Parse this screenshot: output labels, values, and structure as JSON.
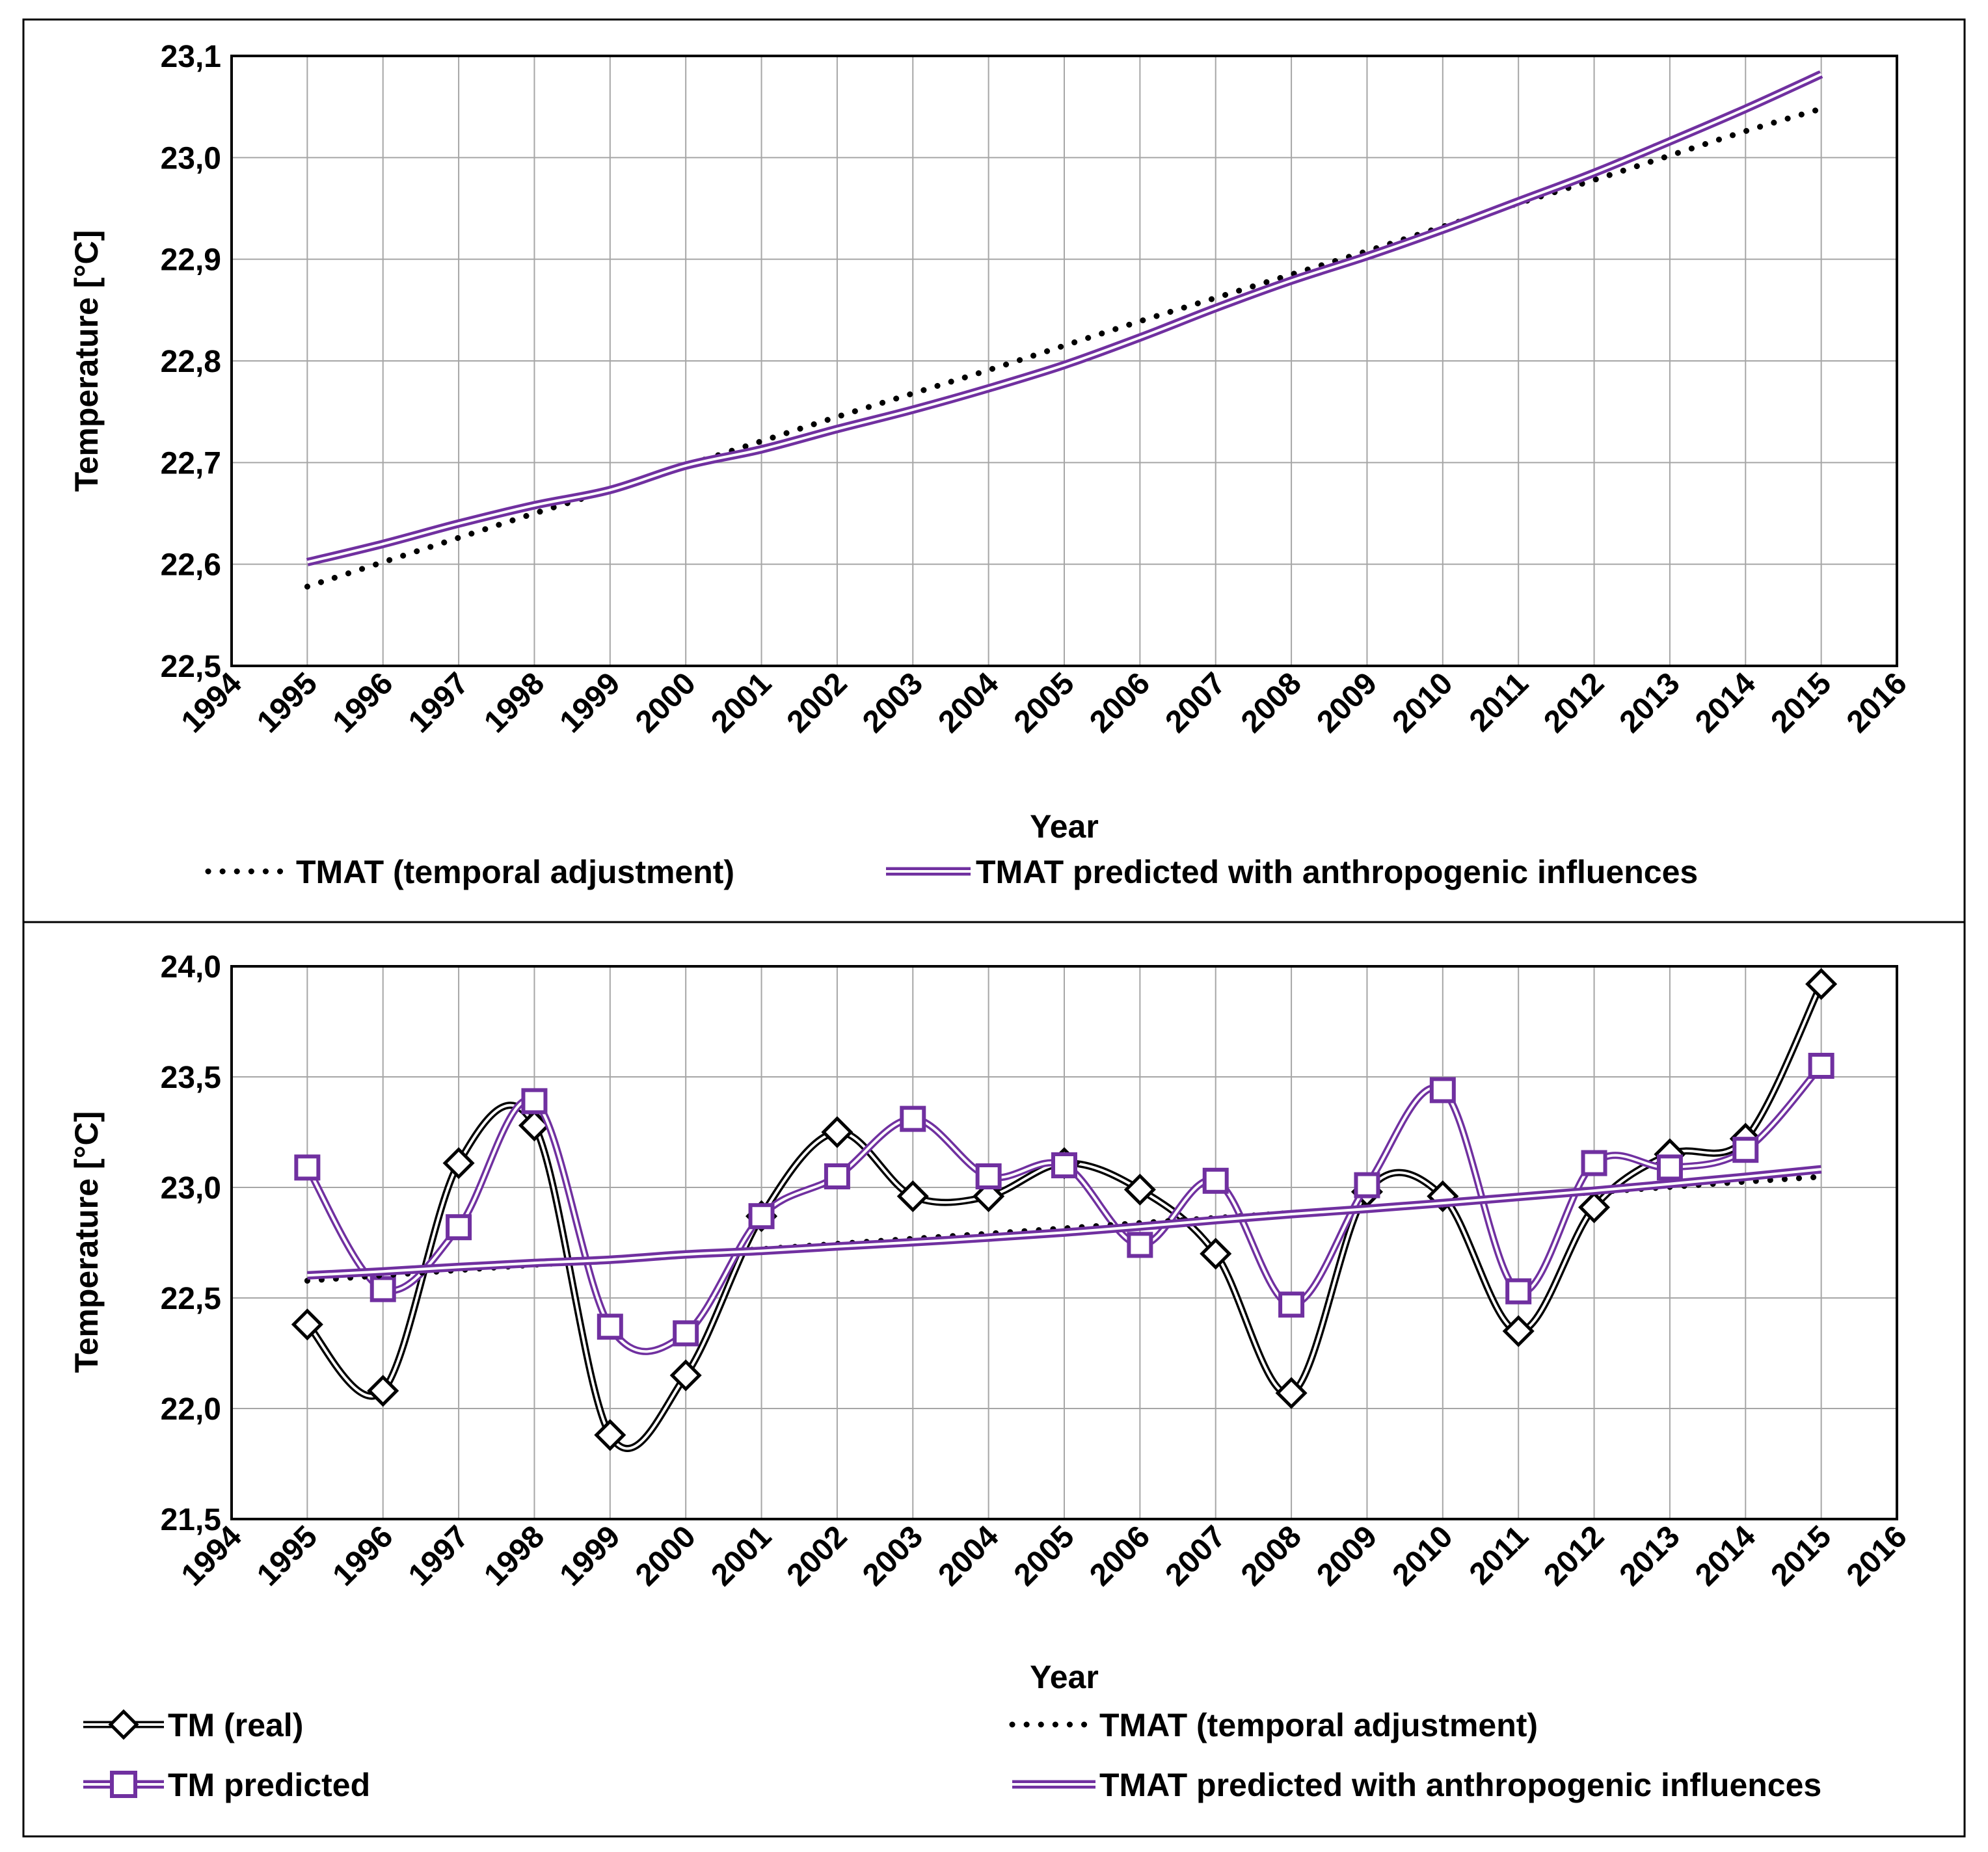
{
  "colors": {
    "purple": "#7030A0",
    "black": "#000000",
    "grid": "#A6A6A6",
    "frame": "#000000"
  },
  "chart_data": [
    {
      "type": "line",
      "xlabel": "Year",
      "ylabel": "Temperature [°C]",
      "xlim": [
        1994,
        2016
      ],
      "ylim": [
        22.5,
        23.1
      ],
      "xticks": [
        "1994",
        "1995",
        "1996",
        "1997",
        "1998",
        "1999",
        "2000",
        "2001",
        "2002",
        "2003",
        "2004",
        "2005",
        "2006",
        "2007",
        "2008",
        "2009",
        "2010",
        "2011",
        "2012",
        "2013",
        "2014",
        "2015",
        "2016"
      ],
      "yticks": [
        "22,5",
        "22,6",
        "22,7",
        "22,8",
        "22,9",
        "23,0",
        "23,1"
      ],
      "grid": true,
      "x": [
        1995,
        1996,
        1997,
        1998,
        1999,
        2000,
        2001,
        2002,
        2003,
        2004,
        2005,
        2006,
        2007,
        2008,
        2009,
        2010,
        2011,
        2012,
        2013,
        2014,
        2015
      ],
      "series": [
        {
          "name": "TMAT (temporal adjustment)",
          "style": "dotted",
          "color": "#000000",
          "values": [
            22.578,
            22.602,
            22.626,
            22.65,
            22.673,
            22.697,
            22.721,
            22.745,
            22.768,
            22.791,
            22.815,
            22.839,
            22.862,
            22.885,
            22.908,
            22.932,
            22.955,
            22.978,
            23.002,
            23.026,
            23.048
          ]
        },
        {
          "name": "TMAT predicted with anthropogenic influences",
          "style": "double",
          "color": "#7030A0",
          "values": [
            22.602,
            22.62,
            22.64,
            22.658,
            22.673,
            22.697,
            22.713,
            22.733,
            22.752,
            22.773,
            22.796,
            22.823,
            22.852,
            22.879,
            22.903,
            22.929,
            22.957,
            22.985,
            23.016,
            23.048,
            23.082
          ]
        }
      ],
      "legend_position": "bottom"
    },
    {
      "type": "line",
      "xlabel": "Year",
      "ylabel": "Temperature [°C]",
      "xlim": [
        1994,
        2016
      ],
      "ylim": [
        21.5,
        24.0
      ],
      "xticks": [
        "1994",
        "1995",
        "1996",
        "1997",
        "1998",
        "1999",
        "2000",
        "2001",
        "2002",
        "2003",
        "2004",
        "2005",
        "2006",
        "2007",
        "2008",
        "2009",
        "2010",
        "2011",
        "2012",
        "2013",
        "2014",
        "2015",
        "2016"
      ],
      "yticks": [
        "21,5",
        "22,0",
        "22,5",
        "23,0",
        "23,5",
        "24,0"
      ],
      "grid": true,
      "x": [
        1995,
        1996,
        1997,
        1998,
        1999,
        2000,
        2001,
        2002,
        2003,
        2004,
        2005,
        2006,
        2007,
        2008,
        2009,
        2010,
        2011,
        2012,
        2013,
        2014,
        2015
      ],
      "series": [
        {
          "name": "TM (real)",
          "style": "double-diamond",
          "color": "#000000",
          "values": [
            22.38,
            22.08,
            23.11,
            23.28,
            21.88,
            22.15,
            22.87,
            23.25,
            22.96,
            22.96,
            23.11,
            22.99,
            22.7,
            22.07,
            22.98,
            22.96,
            22.35,
            22.91,
            23.15,
            23.22,
            23.92
          ]
        },
        {
          "name": "TM predicted",
          "style": "double-square",
          "color": "#7030A0",
          "values": [
            23.09,
            22.54,
            22.82,
            23.39,
            22.37,
            22.34,
            22.87,
            23.05,
            23.31,
            23.05,
            23.1,
            22.74,
            23.03,
            22.47,
            23.01,
            23.44,
            22.53,
            23.11,
            23.09,
            23.17,
            23.55
          ]
        },
        {
          "name": "TMAT (temporal adjustment)",
          "style": "dotted",
          "color": "#000000",
          "values": [
            22.578,
            22.602,
            22.626,
            22.65,
            22.673,
            22.697,
            22.721,
            22.745,
            22.768,
            22.791,
            22.815,
            22.839,
            22.862,
            22.885,
            22.908,
            22.932,
            22.955,
            22.978,
            23.002,
            23.026,
            23.048
          ]
        },
        {
          "name": "TMAT predicted with anthropogenic influences",
          "style": "double",
          "color": "#7030A0",
          "values": [
            22.602,
            22.62,
            22.64,
            22.658,
            22.673,
            22.697,
            22.713,
            22.733,
            22.752,
            22.773,
            22.796,
            22.823,
            22.852,
            22.879,
            22.903,
            22.929,
            22.957,
            22.985,
            23.016,
            23.048,
            23.082
          ]
        }
      ],
      "legend_position": "bottom"
    }
  ]
}
